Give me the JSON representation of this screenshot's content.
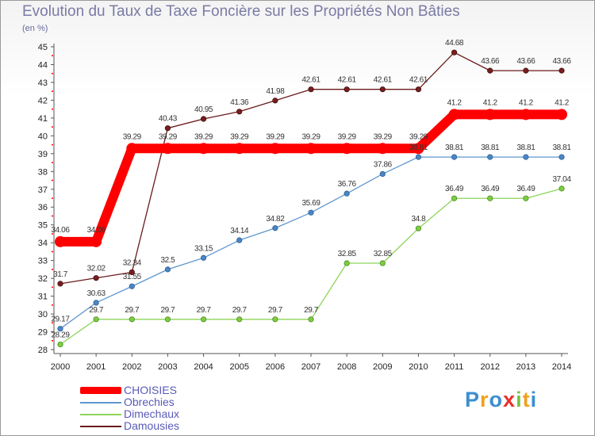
{
  "title": "Evolution du Taux de Taxe Foncière sur les Propriétés Non Bâties",
  "unit_label": "(en %)",
  "logo": {
    "letters": [
      "P",
      "r",
      "o",
      "x",
      "i",
      "t",
      "i"
    ]
  },
  "colors": {
    "choisies": "#ff0000",
    "obrechies": "#5f97cf",
    "dimechaux": "#8ed45a",
    "damousies": "#6b1a1a"
  },
  "chart_data": {
    "type": "line",
    "title": "Evolution du Taux de Taxe Foncière sur les Propriétés Non Bâties",
    "ylabel": "(en %)",
    "xlabel": "",
    "x": [
      "2000",
      "2001",
      "2002",
      "2003",
      "2004",
      "2005",
      "2006",
      "2007",
      "2008",
      "2009",
      "2010",
      "2011",
      "2012",
      "2013",
      "2014"
    ],
    "ylim": [
      28,
      45
    ],
    "yticks": [
      "28",
      "29",
      "30",
      "31",
      "32",
      "33",
      "34",
      "35",
      "36",
      "37",
      "38",
      "39",
      "40",
      "41",
      "42",
      "43",
      "44",
      "45"
    ],
    "grid": false,
    "legend": "bottom-left",
    "series": [
      {
        "name": "CHOISIES",
        "key": "choisies",
        "values": [
          34.06,
          34.06,
          39.29,
          39.29,
          39.29,
          39.29,
          39.29,
          39.29,
          39.29,
          39.29,
          39.29,
          41.2,
          41.2,
          41.2,
          41.2
        ],
        "labels": [
          "34.06",
          "34.06",
          "39.29",
          "39.29",
          "39.29",
          "39.29",
          "39.29",
          "39.29",
          "39.29",
          "39.29",
          "39.29",
          "41.2",
          "41.2",
          "41.2",
          "41.2"
        ]
      },
      {
        "name": "Obrechies",
        "key": "obrechies",
        "values": [
          29.17,
          30.63,
          31.55,
          32.5,
          33.15,
          34.14,
          34.82,
          35.69,
          36.76,
          37.86,
          38.81,
          38.81,
          38.81,
          38.81,
          38.81
        ],
        "labels": [
          "29.17",
          "30.63",
          "31.55",
          "32.5",
          "33.15",
          "34.14",
          "34.82",
          "35.69",
          "36.76",
          "37.86",
          "38.81",
          "38.81",
          "38.81",
          "38.81",
          "38.81"
        ]
      },
      {
        "name": "Dimechaux",
        "key": "dimechaux",
        "values": [
          28.29,
          29.7,
          29.7,
          29.7,
          29.7,
          29.7,
          29.7,
          29.7,
          32.85,
          32.85,
          34.8,
          36.49,
          36.49,
          36.49,
          37.04
        ],
        "labels": [
          "28.29",
          "29.7",
          "29.7",
          "29.7",
          "29.7",
          "29.7",
          "29.7",
          "29.7",
          "32.85",
          "32.85",
          "34.8",
          "36.49",
          "36.49",
          "36.49",
          "37.04"
        ]
      },
      {
        "name": "Damousies",
        "key": "damousies",
        "values": [
          31.7,
          32.02,
          32.34,
          40.43,
          40.95,
          41.36,
          41.98,
          42.61,
          42.61,
          42.61,
          42.61,
          44.68,
          43.66,
          43.66,
          43.66
        ],
        "labels": [
          "31.7",
          "32.02",
          "32.34",
          "40.43",
          "40.95",
          "41.36",
          "41.98",
          "42.61",
          "42.61",
          "42.61",
          "42.61",
          "44.68",
          "43.66",
          "43.66",
          "43.66"
        ]
      }
    ]
  }
}
